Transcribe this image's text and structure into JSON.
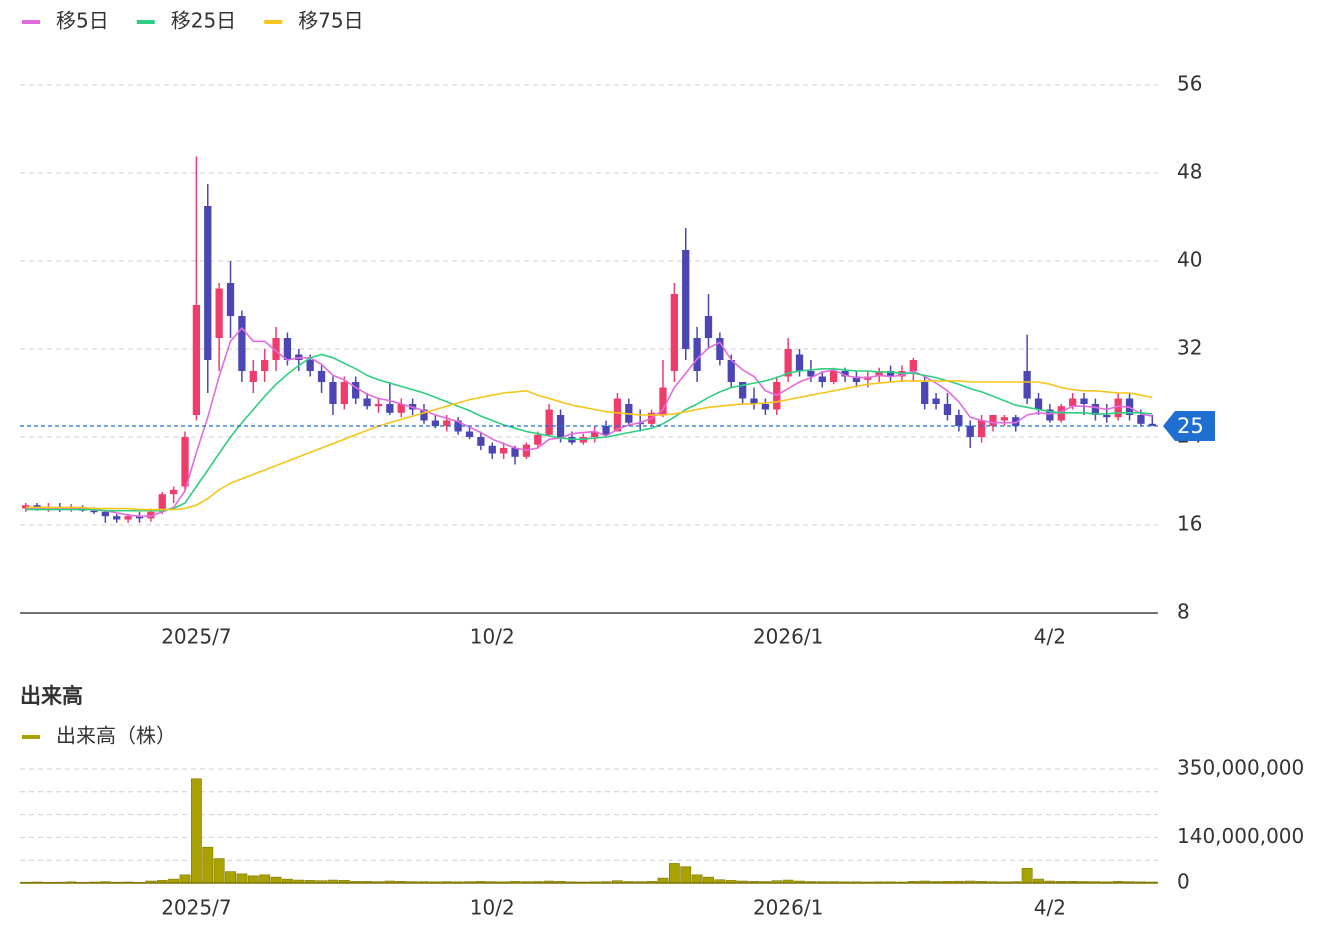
{
  "chart_data": [
    {
      "type": "candlestick",
      "up_color": "#ef3c6b",
      "down_color": "#4b46b4",
      "xlim": [
        -0.5,
        99.5
      ],
      "xticks": [
        {
          "value": 15,
          "label": "2025/7"
        },
        {
          "value": 41,
          "label": "10/2"
        },
        {
          "value": 67,
          "label": "2026/1"
        },
        {
          "value": 90,
          "label": "4/2"
        }
      ],
      "ylim": [
        8,
        56
      ],
      "yticks": [
        8,
        16,
        24,
        32,
        40,
        48,
        56
      ],
      "grid": true,
      "last_price": 25,
      "last_price_color": "#1f6fd1",
      "ohlc": [
        [
          17.5,
          18,
          17.2,
          17.8
        ],
        [
          17.8,
          18,
          17.3,
          17.5
        ],
        [
          17.5,
          18,
          17.2,
          17.6
        ],
        [
          17.6,
          18,
          17.2,
          17.4
        ],
        [
          17.4,
          17.9,
          17.2,
          17.6
        ],
        [
          17.6,
          17.8,
          17.2,
          17.3
        ],
        [
          17.3,
          17.6,
          17,
          17.2
        ],
        [
          17.2,
          17.3,
          16.2,
          16.8
        ],
        [
          16.8,
          17,
          16.2,
          16.5
        ],
        [
          16.5,
          17,
          16.2,
          16.8
        ],
        [
          16.8,
          17.2,
          16.2,
          16.6
        ],
        [
          16.6,
          17.5,
          16.3,
          17.2
        ],
        [
          17.2,
          19,
          17,
          18.8
        ],
        [
          18.8,
          19.5,
          18,
          19.2
        ],
        [
          19.5,
          24.5,
          19,
          24
        ],
        [
          26,
          49.5,
          25.5,
          36
        ],
        [
          45,
          47,
          28,
          31
        ],
        [
          33,
          38,
          30,
          37.5
        ],
        [
          38,
          40,
          33,
          35
        ],
        [
          35,
          35.5,
          29,
          30
        ],
        [
          29,
          31,
          28,
          30
        ],
        [
          30,
          32,
          29,
          31
        ],
        [
          31,
          34,
          30,
          33
        ],
        [
          33,
          33.5,
          30.5,
          31
        ],
        [
          31.5,
          32,
          30,
          31
        ],
        [
          31,
          31.5,
          29.5,
          30
        ],
        [
          30,
          30.5,
          28,
          29
        ],
        [
          29,
          29.5,
          26,
          27
        ],
        [
          27,
          29.5,
          26.5,
          29
        ],
        [
          29,
          29.5,
          27,
          27.5
        ],
        [
          27.5,
          28,
          26.5,
          26.8
        ],
        [
          26.8,
          27.5,
          26.2,
          27
        ],
        [
          27,
          29,
          26,
          26.2
        ],
        [
          26.2,
          27.5,
          25.8,
          27
        ],
        [
          27,
          27.5,
          26,
          26.5
        ],
        [
          26.5,
          27,
          25.2,
          25.5
        ],
        [
          25.5,
          26,
          24.8,
          25
        ],
        [
          25,
          26,
          24.5,
          25.5
        ],
        [
          25.5,
          25.8,
          24.2,
          24.5
        ],
        [
          24.5,
          25,
          23.8,
          24
        ],
        [
          24,
          24.5,
          22.8,
          23.2
        ],
        [
          23.2,
          23.5,
          22,
          22.5
        ],
        [
          22.5,
          23.5,
          22,
          23
        ],
        [
          23,
          23.2,
          21.5,
          22.2
        ],
        [
          22.2,
          23.5,
          22,
          23.3
        ],
        [
          23.3,
          24.5,
          23,
          24.2
        ],
        [
          24.2,
          27,
          24,
          26.5
        ],
        [
          26,
          26.5,
          23.5,
          24
        ],
        [
          24,
          24.5,
          23.3,
          23.5
        ],
        [
          23.5,
          24.3,
          23.3,
          24
        ],
        [
          24,
          25,
          23.5,
          24.5
        ],
        [
          25,
          25.5,
          24,
          24.2
        ],
        [
          24.5,
          28,
          24.5,
          27.5
        ],
        [
          27,
          27.5,
          25,
          25.3
        ],
        [
          25.3,
          26.5,
          24.5,
          25.2
        ],
        [
          25.2,
          26.5,
          25,
          26.2
        ],
        [
          26,
          31,
          25.8,
          28.5
        ],
        [
          30,
          38,
          29,
          37
        ],
        [
          41,
          43,
          31,
          32
        ],
        [
          33,
          34,
          29,
          30
        ],
        [
          35,
          37,
          32,
          33
        ],
        [
          33,
          33.5,
          30.5,
          31
        ],
        [
          31,
          31.5,
          28.5,
          29
        ],
        [
          29,
          29,
          27,
          27.5
        ],
        [
          27.5,
          28.5,
          26.5,
          27
        ],
        [
          27,
          27.5,
          26,
          26.5
        ],
        [
          26.5,
          29.5,
          26,
          29
        ],
        [
          29.5,
          33,
          29,
          32
        ],
        [
          31.5,
          32,
          29.5,
          30
        ],
        [
          30,
          31,
          29,
          29.5
        ],
        [
          29.5,
          30,
          28.5,
          29
        ],
        [
          29,
          30.3,
          28.8,
          30
        ],
        [
          30,
          30.3,
          29,
          29.5
        ],
        [
          29.5,
          30,
          28.5,
          29
        ],
        [
          29.2,
          30,
          28.5,
          29.5
        ],
        [
          29.5,
          30.3,
          29,
          30
        ],
        [
          30,
          30.5,
          29,
          29.5
        ],
        [
          29.5,
          30.5,
          29,
          30
        ],
        [
          30,
          31.2,
          29,
          31
        ],
        [
          29,
          29.5,
          26.5,
          27
        ],
        [
          27.5,
          28,
          26.5,
          27
        ],
        [
          27,
          28,
          25.5,
          26
        ],
        [
          26,
          26.5,
          24.5,
          25
        ],
        [
          25,
          25.5,
          23,
          24
        ],
        [
          24,
          26,
          23.5,
          25.5
        ],
        [
          25,
          26,
          24.5,
          26
        ],
        [
          25.5,
          26,
          25,
          25.8
        ],
        [
          25.8,
          26,
          24.5,
          25
        ],
        [
          30,
          33.3,
          27,
          27.5
        ],
        [
          27.5,
          28,
          26,
          26.5
        ],
        [
          26.5,
          27,
          25.3,
          25.5
        ],
        [
          25.5,
          27,
          25.3,
          26.8
        ],
        [
          26.8,
          28,
          26.5,
          27.5
        ],
        [
          27.5,
          28,
          26,
          27
        ],
        [
          27,
          27.5,
          25.5,
          26
        ],
        [
          26,
          27,
          25.3,
          25.8
        ],
        [
          25.8,
          28,
          25.5,
          27.5
        ],
        [
          27.5,
          28,
          25.5,
          26
        ],
        [
          26,
          26.5,
          25,
          25.2
        ],
        [
          25.2,
          26,
          25,
          25
        ]
      ],
      "series": [
        {
          "name": "移5日",
          "color": "#e36be0",
          "values": [
            17.5,
            17.5,
            17.5,
            17.5,
            17.5,
            17.5,
            17.4,
            17.3,
            17.1,
            16.9,
            16.8,
            16.8,
            17.2,
            17.6,
            19.1,
            22.6,
            25.8,
            29.5,
            32.7,
            33.9,
            32.7,
            32.7,
            31.8,
            31,
            31.2,
            31.2,
            30.6,
            29.6,
            29.2,
            28.5,
            27.9,
            27.5,
            27.3,
            27,
            26.7,
            26.4,
            26,
            25.7,
            25.4,
            24.9,
            24.4,
            23.8,
            23.4,
            23,
            22.8,
            23,
            23.8,
            23.9,
            24.3,
            24.4,
            24.5,
            24.1,
            24.7,
            25.1,
            25.3,
            25.7,
            26.5,
            28.5,
            29.8,
            31.1,
            32.1,
            32.6,
            31,
            30.1,
            29.5,
            28.2,
            27.8,
            28.4,
            29,
            29.4,
            29.9,
            30.1,
            29.6,
            29.4,
            29.4,
            29.6,
            29.5,
            29.6,
            30,
            29.5,
            28.9,
            28.2,
            27.2,
            25.8,
            25.5,
            25.3,
            25.3,
            25.3,
            26,
            26.2,
            26.1,
            26.3,
            26.8,
            26.8,
            26.7,
            26.5,
            26.8,
            26.7,
            26.1,
            25.9
          ]
        },
        {
          "name": "移25日",
          "color": "#2fcf82",
          "values": [
            17.4,
            17.4,
            17.4,
            17.4,
            17.4,
            17.4,
            17.4,
            17.3,
            17.3,
            17.3,
            17.3,
            17.3,
            17.3,
            17.5,
            18,
            19.5,
            21,
            22.5,
            24,
            25.3,
            26.5,
            27.7,
            28.8,
            29.7,
            30.5,
            31.2,
            31.5,
            31.2,
            30.7,
            30.2,
            29.6,
            29.2,
            28.9,
            28.6,
            28.3,
            28,
            27.6,
            27.2,
            26.8,
            26.4,
            25.9,
            25.5,
            25.1,
            24.8,
            24.5,
            24.3,
            24.1,
            23.9,
            23.8,
            23.8,
            23.9,
            24,
            24.2,
            24.4,
            24.6,
            24.8,
            25.2,
            25.8,
            26.5,
            27,
            27.6,
            28.1,
            28.5,
            28.7,
            28.9,
            29.1,
            29.4,
            29.8,
            30,
            30.1,
            30.2,
            30.2,
            30.1,
            30,
            30,
            29.9,
            29.9,
            29.8,
            29.8,
            29.6,
            29.4,
            29.1,
            28.8,
            28.4,
            28.1,
            27.7,
            27.3,
            26.9,
            26.7,
            26.5,
            26.3,
            26.2,
            26.2,
            26.2,
            26.1,
            26.1,
            26.2,
            26.2,
            26.2,
            26.1
          ]
        },
        {
          "name": "移75日",
          "color": "#f5c51c",
          "values": [
            17.6,
            17.6,
            17.6,
            17.6,
            17.6,
            17.6,
            17.5,
            17.5,
            17.5,
            17.5,
            17.4,
            17.4,
            17.4,
            17.4,
            17.5,
            17.8,
            18.4,
            19.2,
            19.8,
            20.2,
            20.6,
            21,
            21.4,
            21.8,
            22.2,
            22.6,
            23,
            23.4,
            23.8,
            24.2,
            24.6,
            25,
            25.3,
            25.6,
            25.9,
            26.2,
            26.5,
            26.8,
            27.1,
            27.4,
            27.6,
            27.8,
            28,
            28.1,
            28.2,
            27.8,
            27.5,
            27.2,
            26.9,
            26.7,
            26.5,
            26.3,
            26.2,
            26.1,
            26,
            26,
            26,
            26.1,
            26.3,
            26.5,
            26.7,
            26.8,
            26.9,
            27,
            27,
            27.1,
            27.2,
            27.4,
            27.6,
            27.8,
            28,
            28.2,
            28.4,
            28.6,
            28.8,
            28.9,
            29,
            29.1,
            29.1,
            29.1,
            29.1,
            29.1,
            29.1,
            29,
            29,
            29,
            29,
            29,
            29,
            29,
            28.8,
            28.5,
            28.3,
            28.2,
            28.2,
            28.1,
            28,
            28,
            27.8,
            27.6
          ]
        }
      ]
    },
    {
      "type": "bar",
      "title": "出来高",
      "xlim": [
        -0.5,
        99.5
      ],
      "xticks": [
        {
          "value": 15,
          "label": "2025/7"
        },
        {
          "value": 41,
          "label": "10/2"
        },
        {
          "value": 67,
          "label": "2026/1"
        },
        {
          "value": 90,
          "label": "4/2"
        }
      ],
      "ylim": [
        0,
        350000000
      ],
      "yticks": [
        0,
        {
          "value": 140000000,
          "label": "140,000,000"
        },
        {
          "value": 350000000,
          "label": "350,000,000"
        }
      ],
      "ygrid": [
        70000000,
        210000000,
        280000000
      ],
      "grid": true,
      "series": [
        {
          "name": "出来高（株）",
          "color": "#a9a100",
          "values": [
            2500000,
            3000000,
            2000000,
            2500000,
            3500000,
            2000000,
            3000000,
            4000000,
            2500000,
            3000000,
            2000000,
            6000000,
            8000000,
            12000000,
            25000000,
            320000000,
            110000000,
            75000000,
            35000000,
            28000000,
            22000000,
            25000000,
            18000000,
            12000000,
            9000000,
            8000000,
            7000000,
            9000000,
            8000000,
            5000000,
            5000000,
            4000000,
            6000000,
            5000000,
            4000000,
            4000000,
            3500000,
            4000000,
            3500000,
            4000000,
            5000000,
            4000000,
            3500000,
            5000000,
            4000000,
            4500000,
            6000000,
            5000000,
            3500000,
            3000000,
            3500000,
            4000000,
            7000000,
            4500000,
            4000000,
            5000000,
            15000000,
            60000000,
            50000000,
            25000000,
            18000000,
            10000000,
            8000000,
            6000000,
            5000000,
            4500000,
            7000000,
            9000000,
            6000000,
            4500000,
            4000000,
            4000000,
            3500000,
            3500000,
            3000000,
            3500000,
            3500000,
            3000000,
            5000000,
            6000000,
            4500000,
            5000000,
            5500000,
            6000000,
            5000000,
            4000000,
            3500000,
            4000000,
            45000000,
            12000000,
            6000000,
            5000000,
            5000000,
            4500000,
            4000000,
            3500000,
            5000000,
            4000000,
            3500000,
            3000000
          ]
        }
      ]
    }
  ]
}
